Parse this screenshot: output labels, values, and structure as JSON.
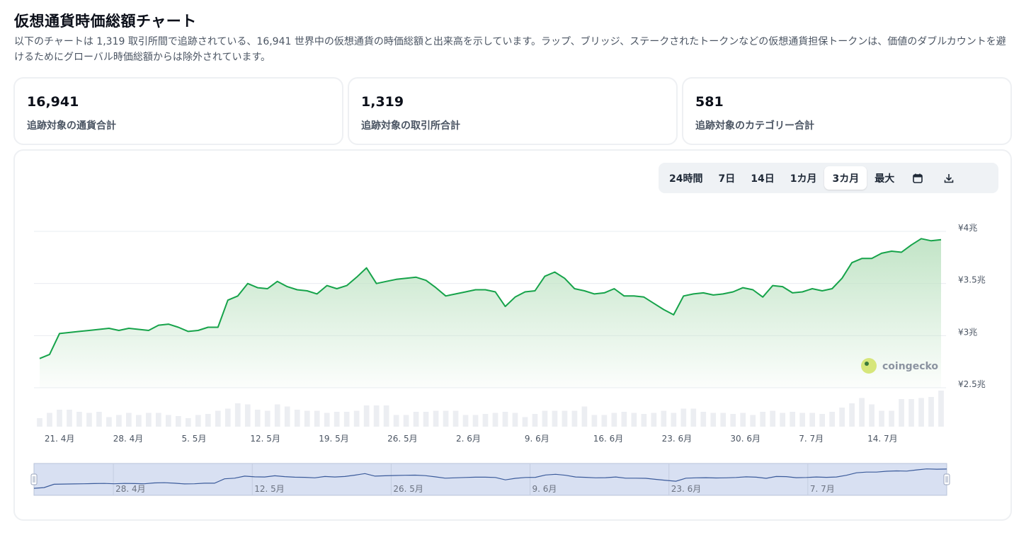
{
  "page": {
    "title": "仮想通貨時価総額チャート",
    "description": "以下のチャートは 1,319 取引所間で追跡されている、16,941 世界中の仮想通貨の時価総額と出来高を示しています。ラップ、ブリッジ、ステークされたトークンなどの仮想通貨担保トークンは、価値のダブルカウントを避けるためにグローバル時価総額からは除外されています。"
  },
  "stats": [
    {
      "value": "16,941",
      "label": "追跡対象の通貨合計"
    },
    {
      "value": "1,319",
      "label": "追跡対象の取引所合計"
    },
    {
      "value": "581",
      "label": "追跡対象のカテゴリー合計"
    }
  ],
  "range_selector": {
    "buttons": [
      "24時間",
      "7日",
      "14日",
      "1カ月",
      "3カ月",
      "最大"
    ],
    "active": "3カ月",
    "icons": [
      "calendar-icon",
      "download-icon"
    ]
  },
  "watermark": "coingecko",
  "colors": {
    "line": "#16a34a",
    "fill": "#bfe3c4",
    "volume": "#eceef2",
    "navigator_bg": "#d8e0f2",
    "navigator_line": "#3b5b9b"
  },
  "chart_data": {
    "type": "area",
    "title": "",
    "xlabel": "",
    "ylabel": "",
    "ylim": [
      2.5,
      4
    ],
    "y_ticks": [
      "¥2.5兆",
      "¥3兆",
      "¥3.5兆",
      "¥4兆"
    ],
    "x_ticks": [
      "21. 4月",
      "28. 4月",
      "5. 5月",
      "12. 5月",
      "19. 5月",
      "26. 5月",
      "2. 6月",
      "9. 6月",
      "16. 6月",
      "23. 6月",
      "30. 6月",
      "7. 7月",
      "14. 7月"
    ],
    "navigator_ticks": [
      "28. 4月",
      "12. 5月",
      "26. 5月",
      "9. 6月",
      "23. 6月",
      "7. 7月"
    ],
    "x_start": "2024-04-20",
    "x_end": "2024-07-21",
    "series": [
      {
        "values": [
          2.78,
          2.82,
          3.02,
          3.03,
          3.04,
          3.05,
          3.06,
          3.07,
          3.05,
          3.07,
          3.06,
          3.05,
          3.1,
          3.11,
          3.08,
          3.04,
          3.05,
          3.08,
          3.08,
          3.34,
          3.38,
          3.5,
          3.46,
          3.45,
          3.52,
          3.47,
          3.44,
          3.43,
          3.4,
          3.48,
          3.45,
          3.48,
          3.56,
          3.65,
          3.5,
          3.52,
          3.54,
          3.55,
          3.56,
          3.53,
          3.46,
          3.38,
          3.4,
          3.42,
          3.44,
          3.44,
          3.42,
          3.28,
          3.37,
          3.42,
          3.43,
          3.57,
          3.61,
          3.55,
          3.45,
          3.43,
          3.4,
          3.41,
          3.45,
          3.38,
          3.38,
          3.37,
          3.31,
          3.25,
          3.2,
          3.38,
          3.4,
          3.41,
          3.39,
          3.4,
          3.42,
          3.46,
          3.44,
          3.37,
          3.48,
          3.47,
          3.41,
          3.42,
          3.45,
          3.43,
          3.45,
          3.55,
          3.7,
          3.74,
          3.74,
          3.79,
          3.81,
          3.8,
          3.87,
          3.93,
          3.91,
          3.92
        ]
      }
    ],
    "volume": [
      8,
      13,
      16,
      16,
      14,
      13,
      14,
      9,
      11,
      13,
      11,
      13,
      13,
      11,
      10,
      8,
      11,
      12,
      15,
      17,
      22,
      21,
      16,
      15,
      21,
      19,
      16,
      15,
      15,
      13,
      14,
      14,
      15,
      20,
      20,
      20,
      11,
      11,
      14,
      14,
      15,
      15,
      15,
      11,
      11,
      12,
      13,
      14,
      13,
      9,
      12,
      15,
      15,
      15,
      15,
      19,
      11,
      11,
      13,
      14,
      13,
      12,
      13,
      15,
      13,
      17,
      17,
      14,
      13,
      13,
      12,
      13,
      11,
      14,
      15,
      13,
      14,
      13,
      13,
      12,
      14,
      18,
      22,
      27,
      21,
      15,
      15,
      26,
      26,
      27,
      28,
      34
    ]
  }
}
